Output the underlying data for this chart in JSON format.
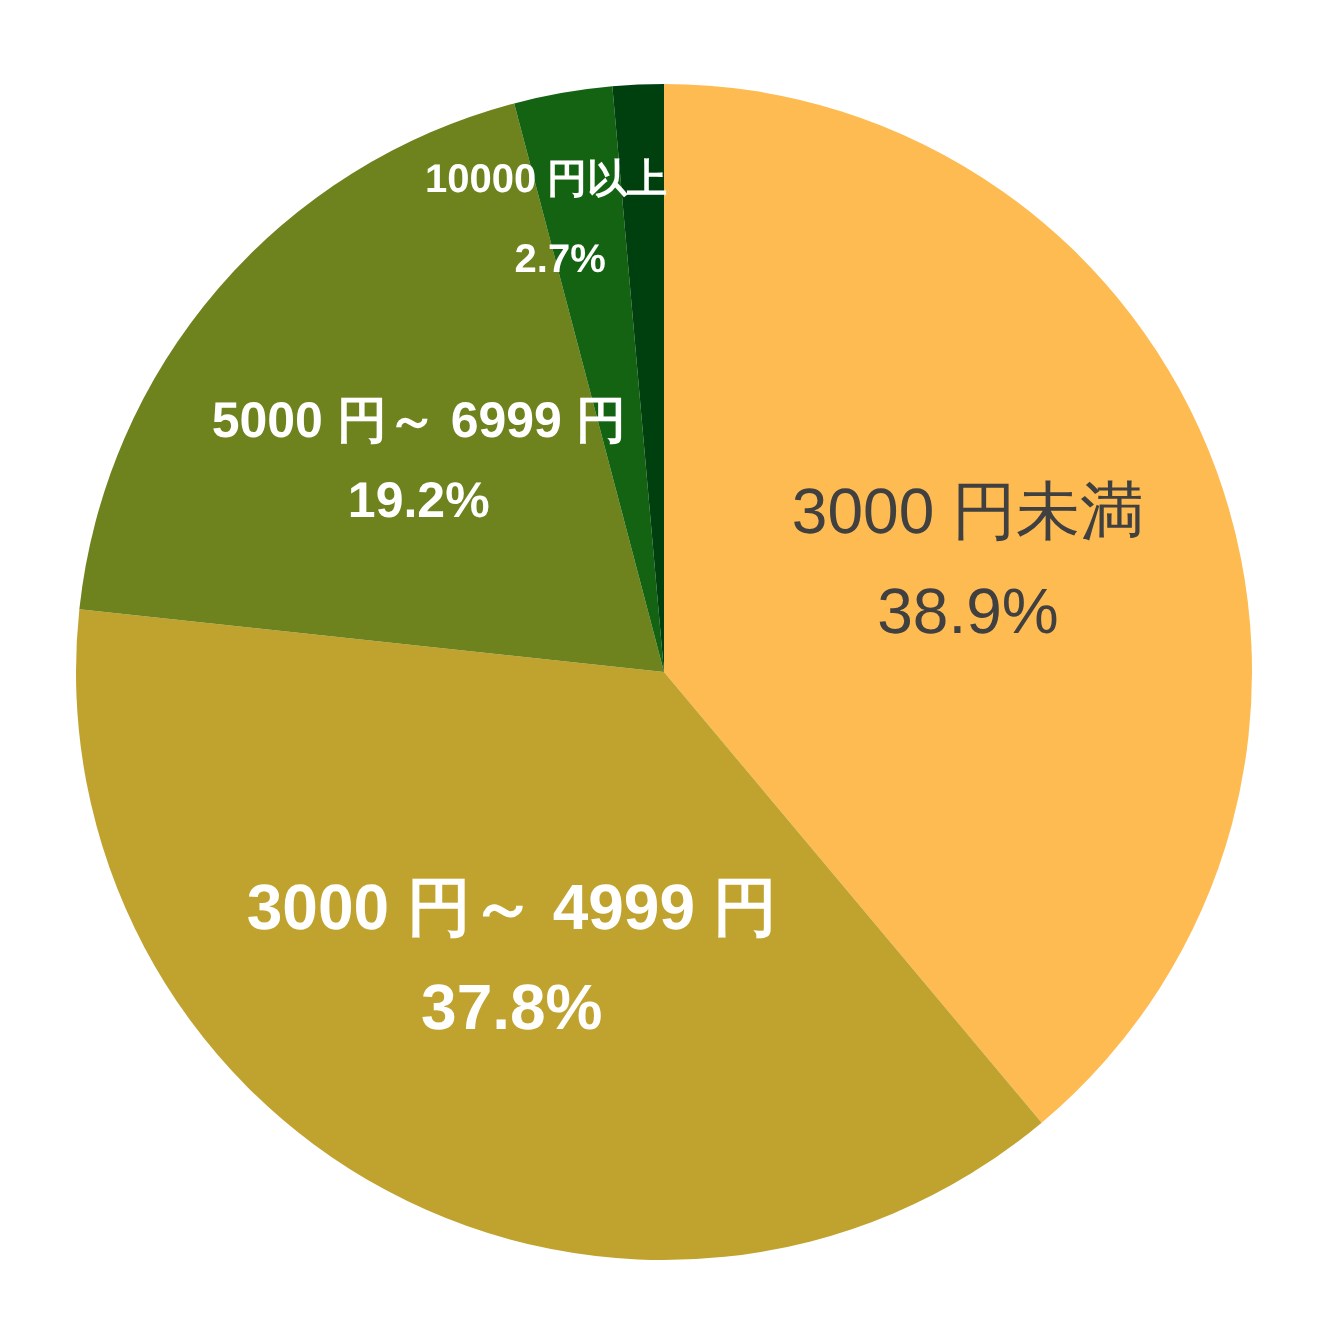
{
  "chart_data": {
    "type": "pie",
    "categories": [
      "3000 円未満",
      "3000 円～ 4999 円",
      "5000 円～ 6999 円",
      "10000 円以上",
      null
    ],
    "values": [
      38.9,
      37.8,
      19.2,
      2.7,
      1.4
    ],
    "colors": [
      "#fdbb52",
      "#c0a22e",
      "#6e821d",
      "#136312",
      "#00400f"
    ],
    "value_labels": [
      "38.9%",
      "37.8%",
      "19.2%",
      "2.7%",
      null
    ]
  }
}
